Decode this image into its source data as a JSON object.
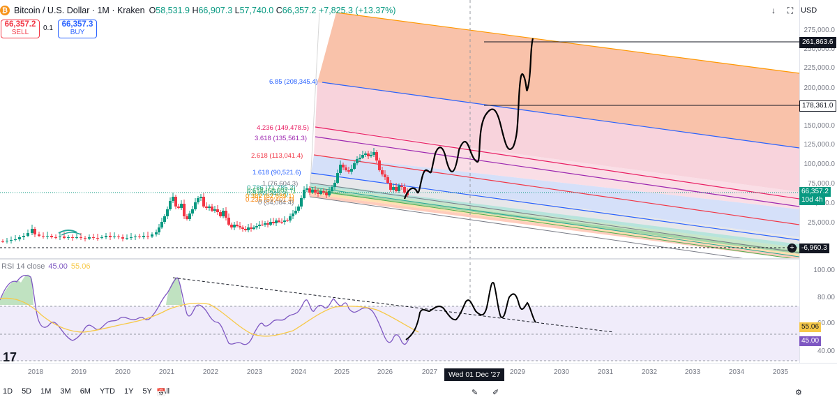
{
  "header": {
    "symbol": "Bitcoin / U.S. Dollar · 1M · Kraken",
    "open": "58,531.9",
    "high": "66,907.3",
    "low": "57,740.0",
    "close": "66,357.2",
    "change": "+7,825.3 (+13.37%)",
    "labels": {
      "o": "O",
      "h": "H",
      "l": "L",
      "c": "C"
    }
  },
  "trade": {
    "sell_price": "66,357.2",
    "sell_label": "SELL",
    "buy_price": "66,357.3",
    "buy_label": "BUY",
    "quantity": "0.1"
  },
  "toolbar": {
    "currency": "USD"
  },
  "price_scale": {
    "ticks": [
      "275,000.0",
      "250,000.0",
      "225,000.0",
      "200,000.0",
      "175,000.0",
      "150,000.0",
      "125,000.0",
      "100,000.0",
      "75,000.0",
      "50,000.0",
      "25,000.0"
    ],
    "labels": [
      {
        "text": "261,863.6",
        "color": "#131722",
        "fg": "#ffffff",
        "outline": true
      },
      {
        "text": "178,361.0",
        "color": "#ffffff",
        "fg": "#131722",
        "outline": true
      },
      {
        "text": "66,357.2",
        "color": "#089981",
        "fg": "#ffffff"
      },
      {
        "text": "10d 4h",
        "color": "#089981",
        "fg": "#ffffff"
      },
      {
        "text": "-6,960.3",
        "color": "#131722",
        "fg": "#ffffff"
      }
    ]
  },
  "fib_levels": [
    {
      "label": "6.85 (208,345.4)",
      "color": "#2962ff"
    },
    {
      "label": "4.236 (149,478.5)",
      "color": "#e91e63"
    },
    {
      "label": "3.618 (135,561.3)",
      "color": "#9c27b0"
    },
    {
      "label": "2.618 (113,041.4)",
      "color": "#f23645"
    },
    {
      "label": "1.618 (90,521.6)",
      "color": "#2962ff"
    },
    {
      "label": "1 (76,604.3)",
      "color": "#787b86"
    },
    {
      "label": "0.786 (71,785.2)",
      "color": "#26a69a"
    },
    {
      "label": "0.618 (68,002.7)",
      "color": "#4caf50"
    },
    {
      "label": "0.5 (65,345.9)",
      "color": "#089981"
    },
    {
      "label": "0.382 (62,689.1)",
      "color": "#ff9800"
    },
    {
      "label": "0.236 (59,401.4)",
      "color": "#f57c00"
    },
    {
      "label": "0 (54,084.4)",
      "color": "#787b86"
    }
  ],
  "rsi": {
    "title": "RSI 14 close",
    "value": "45.00",
    "ma_value": "55.06",
    "ticks": [
      "100.00",
      "80.00",
      "60.00",
      "40.00"
    ],
    "value_color": "#7e57c2",
    "ma_color": "#f7c948"
  },
  "x_axis": {
    "years": [
      "2018",
      "2019",
      "2020",
      "2021",
      "2022",
      "2023",
      "2024",
      "2025",
      "2026",
      "2027",
      "2029",
      "2030",
      "2031",
      "2032",
      "2033",
      "2034",
      "2035"
    ],
    "crosshair_date": "Wed 01 Dec '27"
  },
  "ranges": [
    "1D",
    "5D",
    "1M",
    "3M",
    "6M",
    "YTD",
    "1Y",
    "5Y",
    "All"
  ],
  "chart_data": {
    "type": "candlestick",
    "series": [
      {
        "name": "BTCUSD monthly",
        "last_close": 66357.2
      }
    ],
    "rsi_series": [
      {
        "name": "RSI 14 close",
        "last": 45.0
      },
      {
        "name": "RSI MA",
        "last": 55.06
      }
    ],
    "projection_high": 261863.6,
    "projection_mid": 178361.0
  }
}
